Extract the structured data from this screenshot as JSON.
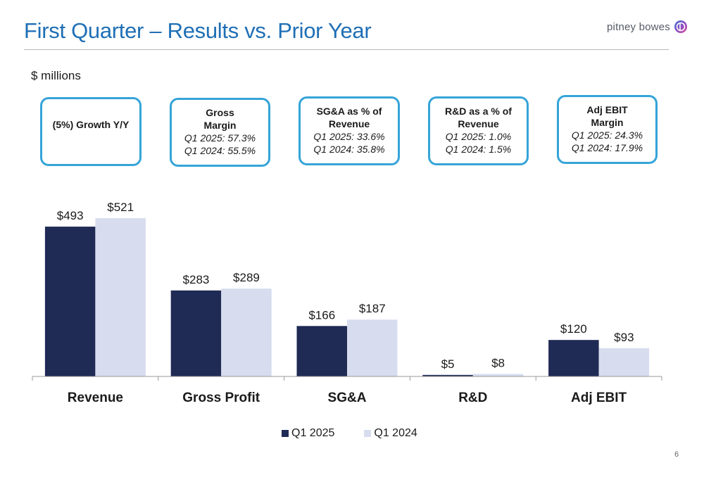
{
  "header": {
    "title": "First Quarter – Results vs. Prior Year",
    "logo_text": "pitney bowes",
    "logo_icon": "pitney-bowes-logo-icon"
  },
  "units_label": "$ millions",
  "callouts": [
    {
      "heading": "(5%) Growth Y/Y"
    },
    {
      "heading_lines": [
        "Gross",
        "Margin"
      ],
      "lines": [
        "Q1 2025: 57.3%",
        "Q1 2024: 55.5%"
      ]
    },
    {
      "heading_lines": [
        "SG&A as % of",
        "Revenue"
      ],
      "lines": [
        "Q1 2025: 33.6%",
        "Q1 2024: 35.8%"
      ]
    },
    {
      "heading_lines": [
        "R&D as a % of",
        "Revenue"
      ],
      "lines": [
        "Q1 2025: 1.0%",
        "Q1 2024: 1.5%"
      ]
    },
    {
      "heading_lines": [
        "Adj EBIT",
        "Margin"
      ],
      "lines": [
        "Q1 2025: 24.3%",
        "Q1 2024: 17.9%"
      ]
    }
  ],
  "colors": {
    "title": "#1f6fb5",
    "callout_border": "#35a4d8",
    "series_q1_2025": "#1f2a55",
    "series_q1_2024": "#d7dcef"
  },
  "chart_data": {
    "type": "bar",
    "categories": [
      "Revenue",
      "Gross Profit",
      "SG&A",
      "R&D",
      "Adj EBIT"
    ],
    "series": [
      {
        "name": "Q1 2025",
        "values": [
          493,
          283,
          166,
          5,
          120
        ],
        "labels": [
          "$493",
          "$283",
          "$166",
          "$5",
          "$120"
        ]
      },
      {
        "name": "Q1 2024",
        "values": [
          521,
          289,
          187,
          8,
          93
        ],
        "labels": [
          "$521",
          "$289",
          "$187",
          "$8",
          "$93"
        ]
      }
    ],
    "ylim": [
      0,
      521
    ],
    "grid": false,
    "legend_position": "bottom"
  },
  "page_number": "6"
}
